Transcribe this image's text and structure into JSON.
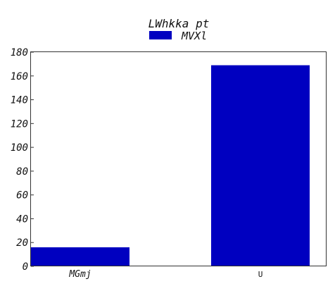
{
  "chart_data": {
    "type": "bar",
    "title": "LWhkka pt",
    "categories": [
      "MGmj",
      "U"
    ],
    "series": [
      {
        "name": "MVXl",
        "values": [
          16,
          169
        ]
      }
    ],
    "ylim": [
      0,
      180
    ],
    "yticks": [
      0,
      20,
      40,
      60,
      80,
      100,
      120,
      140,
      160,
      180
    ],
    "grid": false,
    "legend_position": "top-center",
    "bar_color": "#0000c0"
  }
}
